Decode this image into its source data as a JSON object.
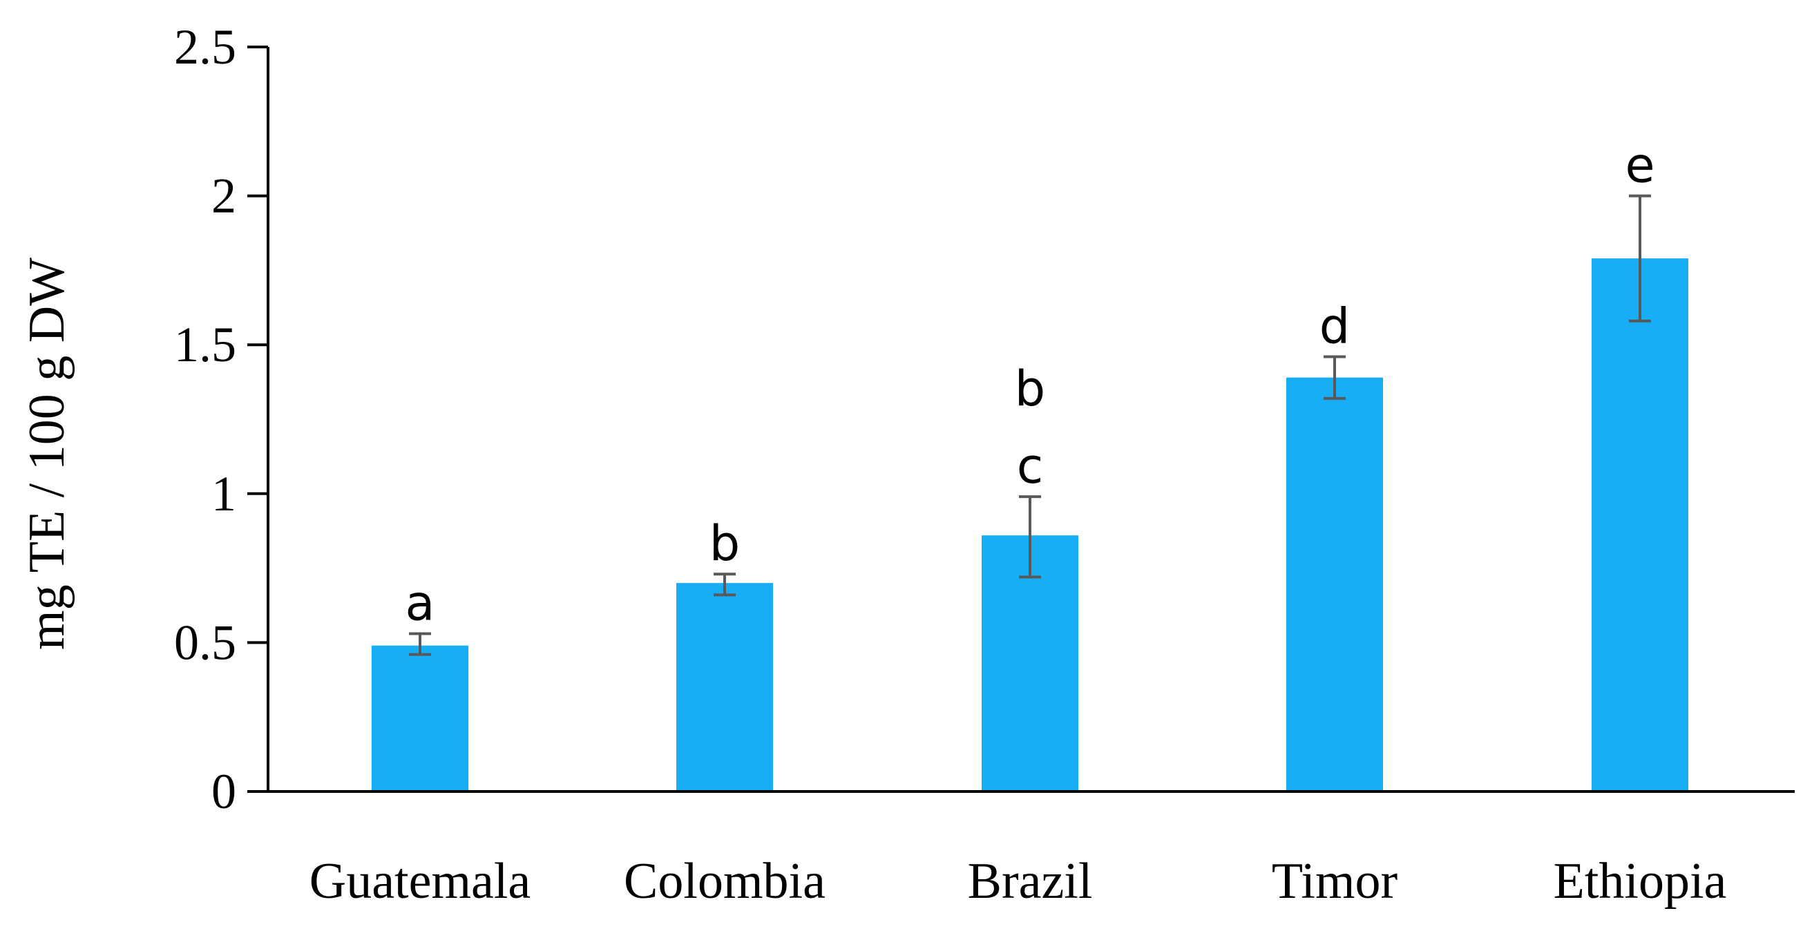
{
  "chart_data": {
    "type": "bar",
    "categories": [
      "Guatemala",
      "Colombia",
      "Brazil",
      "Timor",
      "Ethiopia"
    ],
    "values": [
      0.49,
      0.7,
      0.86,
      1.39,
      1.79
    ],
    "error_high": [
      0.53,
      0.73,
      0.99,
      1.46,
      2.0
    ],
    "error_low": [
      0.46,
      0.66,
      0.72,
      1.32,
      1.58
    ],
    "significance_letters": [
      [
        "a"
      ],
      [
        "b"
      ],
      [
        "c",
        "b"
      ],
      [
        "d"
      ],
      [
        "e"
      ]
    ],
    "ylabel": "mg TE / 100 g DW",
    "yticks": [
      "0",
      "0.5",
      "1",
      "1.5",
      "2",
      "2.5"
    ],
    "ylim": [
      0,
      2.5
    ],
    "bar_color": "#17AEF6",
    "error_color": "#595959",
    "axis_color": "#000000",
    "grid": false
  }
}
